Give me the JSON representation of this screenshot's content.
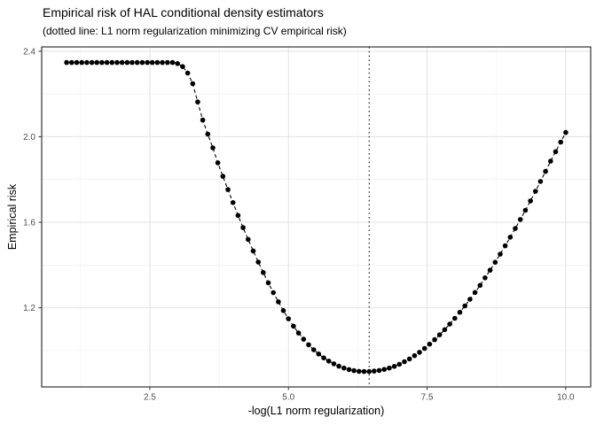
{
  "chart_data": {
    "type": "scatter",
    "title": "Empirical risk of HAL conditional density estimators",
    "subtitle": "(dotted line: L1 norm regularization minimizing CV empirical risk)",
    "xlabel": "-log(L1 norm regularization)",
    "ylabel": "Empirical risk",
    "x": [
      1,
      1.091,
      1.182,
      1.273,
      1.364,
      1.455,
      1.545,
      1.636,
      1.727,
      1.818,
      1.909,
      2,
      2.091,
      2.182,
      2.273,
      2.364,
      2.455,
      2.545,
      2.636,
      2.727,
      2.818,
      2.909,
      3,
      3.091,
      3.182,
      3.273,
      3.364,
      3.455,
      3.545,
      3.636,
      3.727,
      3.818,
      3.909,
      4,
      4.091,
      4.182,
      4.273,
      4.364,
      4.455,
      4.545,
      4.636,
      4.727,
      4.818,
      4.909,
      5,
      5.091,
      5.182,
      5.273,
      5.364,
      5.455,
      5.545,
      5.636,
      5.727,
      5.818,
      5.909,
      6,
      6.091,
      6.182,
      6.273,
      6.364,
      6.455,
      6.545,
      6.636,
      6.727,
      6.818,
      6.909,
      7,
      7.091,
      7.182,
      7.273,
      7.364,
      7.455,
      7.545,
      7.636,
      7.727,
      7.818,
      7.909,
      8,
      8.091,
      8.182,
      8.273,
      8.364,
      8.455,
      8.545,
      8.636,
      8.727,
      8.818,
      8.909,
      9,
      9.091,
      9.182,
      9.273,
      9.364,
      9.455,
      9.545,
      9.636,
      9.727,
      9.818,
      9.909,
      10
    ],
    "y": [
      2.347,
      2.347,
      2.347,
      2.347,
      2.347,
      2.347,
      2.347,
      2.347,
      2.347,
      2.347,
      2.347,
      2.347,
      2.347,
      2.347,
      2.347,
      2.347,
      2.347,
      2.347,
      2.347,
      2.347,
      2.347,
      2.347,
      2.342,
      2.328,
      2.298,
      2.248,
      2.163,
      2.078,
      2.012,
      1.948,
      1.878,
      1.815,
      1.753,
      1.692,
      1.632,
      1.575,
      1.52,
      1.466,
      1.414,
      1.365,
      1.317,
      1.271,
      1.228,
      1.187,
      1.149,
      1.114,
      1.082,
      1.053,
      1.027,
      1.004,
      0.984,
      0.966,
      0.951,
      0.938,
      0.927,
      0.918,
      0.911,
      0.906,
      0.903,
      0.902,
      0.902,
      0.904,
      0.907,
      0.912,
      0.918,
      0.926,
      0.936,
      0.948,
      0.961,
      0.976,
      0.992,
      1.01,
      1.03,
      1.051,
      1.074,
      1.098,
      1.124,
      1.151,
      1.179,
      1.209,
      1.24,
      1.272,
      1.305,
      1.34,
      1.376,
      1.413,
      1.451,
      1.49,
      1.53,
      1.571,
      1.613,
      1.656,
      1.7,
      1.745,
      1.791,
      1.838,
      1.886,
      1.93,
      1.975,
      2.02
    ],
    "cv_min_x": 6.455,
    "xlim": [
      0.55,
      10.45
    ],
    "ylim": [
      0.83,
      2.42
    ],
    "x_ticks": [
      2.5,
      5,
      7.5,
      10
    ],
    "x_tick_labels": [
      "2.5",
      "5.0",
      "7.5",
      "10.0"
    ],
    "x_minor_ticks": [
      1.25,
      3.75,
      6.25,
      8.75
    ],
    "y_ticks": [
      1.2,
      1.6,
      2,
      2.4
    ],
    "y_tick_labels": [
      "1.2",
      "1.6",
      "2.0",
      "2.4"
    ],
    "y_minor_ticks": [
      1,
      1.4,
      1.8,
      2.2
    ],
    "grid": true,
    "legend": "none",
    "line_style": "dashed",
    "vline_style": "dotted",
    "colors": {
      "point": "#000000",
      "line": "#000000",
      "vline": "#000000",
      "panel_border": "#333333",
      "major_grid": "#e2e2e2",
      "minor_grid": "#f0f0f0",
      "tick": "#333333",
      "tick_label": "#4d4d4d",
      "background": "#ffffff"
    }
  }
}
